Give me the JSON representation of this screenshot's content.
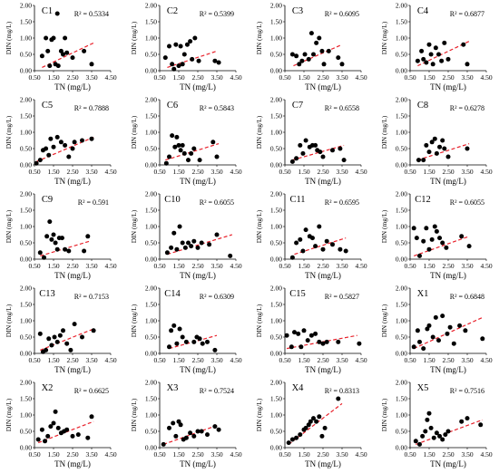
{
  "figure": {
    "x_tick_labels": [
      "0.50",
      "1.50",
      "2.50",
      "3.50",
      "4.50"
    ],
    "y_tick_labels": [
      "0.00",
      "0.50",
      "1.00",
      "1.50",
      "2.00"
    ],
    "xlabel": "TN (mg/L)",
    "ylabel": "DIN (mg/L)"
  },
  "colors": {
    "points": "#000000",
    "trendline": "#e8212b",
    "axes": "#000000"
  },
  "chart_data": [
    {
      "type": "scatter",
      "title": "C1",
      "r2_label": "R² = 0.5334",
      "xlim": [
        0.5,
        4.5
      ],
      "ylim": [
        0,
        2
      ],
      "grid": false,
      "x": [
        0.9,
        1.1,
        1.2,
        1.3,
        1.4,
        1.5,
        1.6,
        1.7,
        1.75,
        1.9,
        2.0,
        2.1,
        2.2,
        2.5,
        3.1,
        3.5
      ],
      "y": [
        0.45,
        1.0,
        0.6,
        0.15,
        0.95,
        1.0,
        0.2,
        1.75,
        0.15,
        0.6,
        0.5,
        1.0,
        0.55,
        0.4,
        0.6,
        0.2
      ],
      "trend": [
        [
          0.9,
          0.1
        ],
        [
          3.6,
          0.85
        ]
      ]
    },
    {
      "type": "scatter",
      "title": "C2",
      "r2_label": "R² = 0.5399",
      "xlim": [
        0.5,
        4.5
      ],
      "ylim": [
        0,
        2
      ],
      "grid": false,
      "x": [
        0.8,
        1.0,
        1.15,
        1.25,
        1.35,
        1.5,
        1.6,
        1.7,
        1.8,
        1.95,
        2.1,
        2.2,
        2.35,
        2.55,
        3.4,
        3.6
      ],
      "y": [
        0.4,
        0.75,
        0.2,
        0.05,
        0.8,
        0.15,
        0.75,
        0.2,
        0.5,
        0.8,
        0.9,
        0.35,
        1.0,
        0.3,
        0.3,
        0.25
      ],
      "trend": [
        [
          0.9,
          0.1
        ],
        [
          3.5,
          0.6
        ]
      ]
    },
    {
      "type": "scatter",
      "title": "C3",
      "r2_label": "R² = 0.6095",
      "xlim": [
        0.5,
        4.5
      ],
      "ylim": [
        0,
        2
      ],
      "grid": false,
      "x": [
        0.9,
        1.1,
        1.25,
        1.4,
        1.55,
        1.75,
        1.9,
        2.0,
        2.15,
        2.3,
        2.45,
        2.55,
        2.8,
        3.3,
        3.5
      ],
      "y": [
        0.5,
        0.45,
        0.2,
        0.3,
        0.5,
        0.35,
        1.15,
        0.5,
        0.85,
        1.0,
        0.6,
        0.2,
        0.6,
        0.4,
        0.2
      ],
      "trend": [
        [
          0.95,
          0.15
        ],
        [
          3.5,
          0.8
        ]
      ]
    },
    {
      "type": "scatter",
      "title": "C4",
      "r2_label": "R² = 0.6877",
      "xlim": [
        0.5,
        4.5
      ],
      "ylim": [
        0,
        2
      ],
      "grid": false,
      "x": [
        0.9,
        1.1,
        1.2,
        1.35,
        1.5,
        1.6,
        1.7,
        1.85,
        2.0,
        2.15,
        2.3,
        2.5,
        3.3,
        3.5
      ],
      "y": [
        0.3,
        0.6,
        0.35,
        0.25,
        0.8,
        0.5,
        0.2,
        0.7,
        0.5,
        0.3,
        0.85,
        0.35,
        0.8,
        0.2
      ],
      "trend": [
        [
          0.9,
          0.15
        ],
        [
          3.6,
          0.9
        ]
      ]
    },
    {
      "type": "scatter",
      "title": "C5",
      "r2_label": "R² = 0.7888",
      "xlim": [
        0.5,
        4.5
      ],
      "ylim": [
        0,
        2
      ],
      "grid": false,
      "x": [
        0.6,
        0.8,
        0.95,
        1.1,
        1.25,
        1.35,
        1.5,
        1.7,
        1.9,
        2.1,
        2.3,
        2.5,
        2.6,
        3.0,
        3.5
      ],
      "y": [
        0.05,
        0.15,
        0.45,
        0.5,
        0.3,
        0.8,
        0.55,
        0.85,
        0.7,
        0.6,
        0.25,
        0.5,
        0.7,
        0.75,
        0.8
      ],
      "trend": [
        [
          0.6,
          0.1
        ],
        [
          3.6,
          0.85
        ]
      ]
    },
    {
      "type": "scatter",
      "title": "C6",
      "r2_label": "R² = 0.5843",
      "xlim": [
        0.5,
        4.5
      ],
      "ylim": [
        0,
        2
      ],
      "grid": false,
      "x": [
        0.85,
        1.0,
        1.15,
        1.3,
        1.4,
        1.5,
        1.6,
        1.7,
        1.8,
        2.0,
        2.15,
        2.3,
        2.6,
        3.3,
        3.5
      ],
      "y": [
        0.05,
        0.25,
        0.9,
        0.55,
        0.85,
        0.6,
        0.45,
        0.6,
        0.35,
        0.15,
        0.35,
        0.5,
        0.15,
        0.7,
        0.25
      ],
      "trend": [
        [
          0.8,
          0.15
        ],
        [
          3.6,
          0.65
        ]
      ]
    },
    {
      "type": "scatter",
      "title": "C7",
      "r2_label": "R² = 0.6558",
      "xlim": [
        0.5,
        4.5
      ],
      "ylim": [
        0,
        2
      ],
      "grid": false,
      "x": [
        0.9,
        1.1,
        1.3,
        1.45,
        1.6,
        1.8,
        1.95,
        2.1,
        2.2,
        2.35,
        2.5,
        3.0,
        3.4,
        3.6
      ],
      "y": [
        0.1,
        0.2,
        0.6,
        0.35,
        0.75,
        0.55,
        0.6,
        0.6,
        0.45,
        0.4,
        0.25,
        0.45,
        0.5,
        0.15
      ],
      "trend": [
        [
          0.9,
          0.15
        ],
        [
          3.6,
          0.6
        ]
      ]
    },
    {
      "type": "scatter",
      "title": "C8",
      "r2_label": "R² = 0.6278",
      "xlim": [
        0.5,
        4.5
      ],
      "ylim": [
        0,
        2
      ],
      "grid": false,
      "x": [
        0.95,
        1.2,
        1.35,
        1.5,
        1.65,
        1.8,
        1.9,
        2.05,
        2.2,
        2.3,
        2.5,
        3.5
      ],
      "y": [
        0.15,
        0.15,
        0.6,
        0.4,
        0.7,
        0.8,
        0.35,
        0.55,
        0.75,
        0.5,
        0.25,
        0.5
      ],
      "trend": [
        [
          0.9,
          0.15
        ],
        [
          3.6,
          0.65
        ]
      ]
    },
    {
      "type": "scatter",
      "title": "C9",
      "r2_label": "R² = 0.591",
      "xlim": [
        0.5,
        4.5
      ],
      "ylim": [
        0,
        2
      ],
      "grid": false,
      "x": [
        0.8,
        1.0,
        1.15,
        1.3,
        1.4,
        1.5,
        1.6,
        1.7,
        1.8,
        1.95,
        2.1,
        2.3,
        3.1,
        3.3
      ],
      "y": [
        0.2,
        0.05,
        0.7,
        1.15,
        0.6,
        0.75,
        0.5,
        0.3,
        0.65,
        0.65,
        0.3,
        0.25,
        0.25,
        0.7
      ],
      "trend": [
        [
          0.8,
          0.1
        ],
        [
          3.4,
          0.55
        ]
      ]
    },
    {
      "type": "scatter",
      "title": "C10",
      "r2_label": "R² = 0.6055",
      "xlim": [
        0.5,
        4.5
      ],
      "ylim": [
        0,
        2
      ],
      "grid": false,
      "x": [
        0.9,
        1.1,
        1.25,
        1.4,
        1.55,
        1.7,
        1.85,
        2.0,
        2.15,
        2.3,
        2.5,
        2.7,
        3.1,
        3.5,
        4.2
      ],
      "y": [
        0.2,
        0.35,
        0.8,
        0.3,
        1.0,
        0.5,
        0.35,
        0.5,
        0.4,
        0.55,
        0.35,
        0.5,
        0.45,
        0.75,
        0.1
      ],
      "trend": [
        [
          0.9,
          0.15
        ],
        [
          4.3,
          0.75
        ]
      ]
    },
    {
      "type": "scatter",
      "title": "C11",
      "r2_label": "R² = 0.6595",
      "xlim": [
        0.5,
        4.5
      ],
      "ylim": [
        0,
        2
      ],
      "grid": false,
      "x": [
        0.9,
        1.1,
        1.3,
        1.45,
        1.6,
        1.8,
        1.95,
        2.1,
        2.3,
        2.5,
        2.7,
        3.0,
        3.4,
        3.7
      ],
      "y": [
        0.05,
        0.5,
        0.6,
        0.25,
        0.9,
        0.7,
        0.65,
        0.4,
        1.0,
        0.3,
        0.55,
        0.45,
        0.3,
        0.25
      ],
      "trend": [
        [
          1.0,
          0.15
        ],
        [
          3.7,
          0.65
        ]
      ]
    },
    {
      "type": "scatter",
      "title": "C12",
      "r2_label": "R² = 0.6055",
      "xlim": [
        0.5,
        4.5
      ],
      "ylim": [
        0,
        2
      ],
      "grid": false,
      "x": [
        0.7,
        0.85,
        1.0,
        1.2,
        1.35,
        1.5,
        1.65,
        1.8,
        1.9,
        2.05,
        2.2,
        2.4,
        3.2,
        3.6
      ],
      "y": [
        0.95,
        0.65,
        0.1,
        0.55,
        0.95,
        0.3,
        0.6,
        1.0,
        0.85,
        0.65,
        0.5,
        0.35,
        0.7,
        0.4
      ],
      "trend": [
        [
          0.7,
          0.1
        ],
        [
          3.6,
          0.7
        ]
      ]
    },
    {
      "type": "scatter",
      "title": "C13",
      "r2_label": "R² = 0.7153",
      "xlim": [
        0.5,
        4.5
      ],
      "ylim": [
        0,
        2
      ],
      "grid": false,
      "x": [
        0.8,
        0.95,
        1.1,
        1.25,
        1.4,
        1.55,
        1.7,
        1.85,
        2.0,
        2.2,
        2.4,
        2.6,
        3.0,
        3.6
      ],
      "y": [
        0.6,
        0.05,
        0.1,
        0.45,
        0.25,
        0.5,
        0.35,
        0.55,
        0.7,
        0.3,
        0.1,
        0.9,
        0.5,
        0.7
      ],
      "trend": [
        [
          0.8,
          0.1
        ],
        [
          3.6,
          0.75
        ]
      ]
    },
    {
      "type": "scatter",
      "title": "C14",
      "r2_label": "R² = 0.6309",
      "xlim": [
        0.5,
        4.5
      ],
      "ylim": [
        0,
        2
      ],
      "grid": false,
      "x": [
        1.0,
        1.1,
        1.25,
        1.4,
        1.55,
        1.7,
        1.9,
        2.3,
        2.45,
        2.6,
        2.75,
        3.0,
        3.4
      ],
      "y": [
        0.2,
        0.7,
        0.85,
        0.3,
        0.75,
        0.5,
        0.35,
        0.35,
        0.5,
        0.45,
        0.3,
        0.35,
        0.1
      ],
      "trend": [
        [
          1.0,
          0.15
        ],
        [
          3.5,
          0.55
        ]
      ]
    },
    {
      "type": "scatter",
      "title": "C15",
      "r2_label": "R² = 0.5827",
      "xlim": [
        0.5,
        4.5
      ],
      "ylim": [
        0,
        2
      ],
      "grid": false,
      "x": [
        0.6,
        0.85,
        1.0,
        1.2,
        1.35,
        1.5,
        1.7,
        1.9,
        2.1,
        2.3,
        2.5,
        2.7,
        3.3,
        4.4
      ],
      "y": [
        0.55,
        0.2,
        0.65,
        0.6,
        0.2,
        0.7,
        0.4,
        0.55,
        0.6,
        0.35,
        0.3,
        0.35,
        0.35,
        0.3
      ],
      "trend": [
        [
          0.6,
          0.15
        ],
        [
          4.3,
          0.55
        ]
      ]
    },
    {
      "type": "scatter",
      "title": "X1",
      "r2_label": "R² = 0.6848",
      "xlim": [
        0.5,
        4.5
      ],
      "ylim": [
        0,
        2
      ],
      "grid": false,
      "x": [
        0.7,
        0.9,
        1.0,
        1.2,
        1.4,
        1.5,
        1.7,
        1.85,
        2.0,
        2.2,
        2.45,
        2.6,
        2.8,
        3.1,
        3.4,
        4.3
      ],
      "y": [
        0.2,
        0.7,
        0.35,
        0.15,
        0.75,
        0.85,
        0.5,
        1.1,
        0.4,
        1.15,
        0.6,
        0.8,
        0.3,
        0.85,
        0.7,
        0.45
      ],
      "trend": [
        [
          0.7,
          0.15
        ],
        [
          4.3,
          1.1
        ]
      ]
    },
    {
      "type": "scatter",
      "title": "X2",
      "r2_label": "R² = 0.6625",
      "xlim": [
        0.5,
        4.5
      ],
      "ylim": [
        0,
        2
      ],
      "grid": false,
      "x": [
        0.7,
        0.9,
        1.05,
        1.2,
        1.35,
        1.5,
        1.6,
        1.75,
        1.9,
        2.05,
        2.2,
        2.5,
        2.8,
        3.3,
        3.5
      ],
      "y": [
        0.25,
        0.55,
        0.2,
        0.35,
        0.65,
        0.75,
        1.1,
        0.6,
        0.45,
        0.5,
        0.55,
        0.35,
        0.4,
        0.3,
        0.95
      ],
      "trend": [
        [
          0.7,
          0.15
        ],
        [
          3.6,
          0.8
        ]
      ]
    },
    {
      "type": "scatter",
      "title": "X3",
      "r2_label": "R² = 0.7524",
      "xlim": [
        0.5,
        4.5
      ],
      "ylim": [
        0,
        2
      ],
      "grid": false,
      "x": [
        0.7,
        1.0,
        1.2,
        1.35,
        1.5,
        1.6,
        1.75,
        1.9,
        2.1,
        2.3,
        2.5,
        2.7,
        3.0,
        3.4,
        3.6
      ],
      "y": [
        0.1,
        0.6,
        0.75,
        0.35,
        0.8,
        0.7,
        0.25,
        0.3,
        0.45,
        0.35,
        0.5,
        0.5,
        0.4,
        0.65,
        0.55
      ],
      "trend": [
        [
          0.7,
          0.1
        ],
        [
          3.6,
          0.7
        ]
      ]
    },
    {
      "type": "scatter",
      "title": "X4",
      "r2_label": "R² = 0.8313",
      "xlim": [
        0.5,
        4.5
      ],
      "ylim": [
        0,
        2
      ],
      "grid": false,
      "x": [
        0.7,
        0.9,
        1.1,
        1.3,
        1.5,
        1.6,
        1.75,
        1.85,
        2.0,
        2.15,
        2.3,
        2.45,
        2.6,
        3.3
      ],
      "y": [
        0.15,
        0.25,
        0.3,
        0.4,
        0.55,
        0.6,
        0.7,
        0.8,
        0.9,
        0.8,
        0.95,
        0.35,
        0.6,
        1.5
      ],
      "trend": [
        [
          0.7,
          0.1
        ],
        [
          3.5,
          1.35
        ]
      ]
    },
    {
      "type": "scatter",
      "title": "X5",
      "r2_label": "R² = 0.7516",
      "xlim": [
        0.5,
        4.5
      ],
      "ylim": [
        0,
        2
      ],
      "grid": false,
      "x": [
        0.8,
        1.0,
        1.15,
        1.3,
        1.4,
        1.5,
        1.6,
        1.75,
        1.9,
        2.05,
        2.2,
        2.35,
        2.5,
        3.2,
        3.5,
        4.2
      ],
      "y": [
        0.2,
        0.1,
        0.35,
        0.5,
        0.85,
        1.05,
        0.6,
        0.3,
        0.45,
        0.35,
        0.25,
        0.4,
        0.5,
        0.8,
        0.9,
        0.7
      ],
      "trend": [
        [
          0.8,
          0.1
        ],
        [
          4.3,
          0.85
        ]
      ]
    }
  ]
}
